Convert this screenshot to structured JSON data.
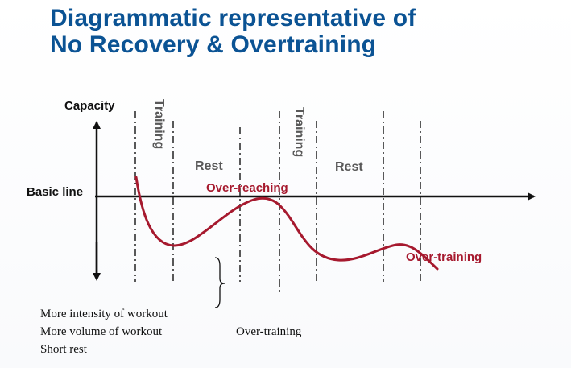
{
  "slide": {
    "title_line1": "Diagrammatic representative of",
    "title_line2": "No Recovery & Overtraining"
  },
  "diagram": {
    "y_axis_label": "Capacity",
    "baseline_label": "Basic line",
    "phase_labels": {
      "training_1": "Training",
      "rest_1": "Rest",
      "training_2": "Training",
      "rest_2": "Rest"
    },
    "curve_labels": {
      "over_reaching": "Over-reaching",
      "over_training": "Over-training"
    },
    "notes": {
      "causes": [
        "More intensity of workout",
        "More volume of workout",
        "Short rest"
      ],
      "result": "Over-training"
    },
    "colors": {
      "title": "#0b5394",
      "curve": "#a6192e",
      "axis": "#111111",
      "phase_label": "#595959"
    }
  }
}
